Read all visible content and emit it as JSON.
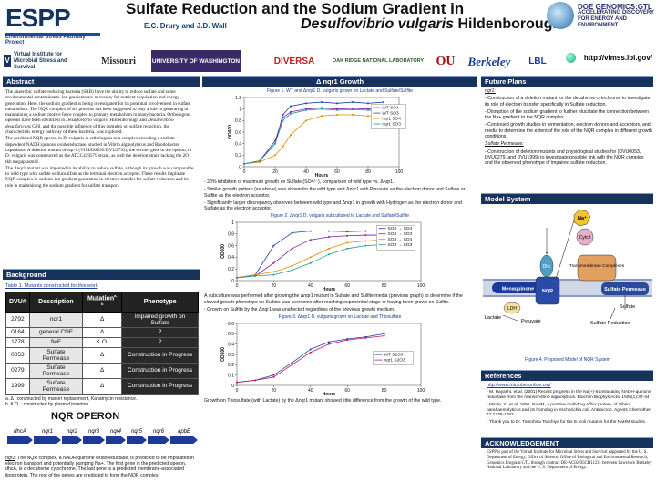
{
  "header": {
    "logo_letters": "ESPP",
    "logo_sub": "Environmental Stress Pathway Project",
    "title_line1": "Sulfate Reduction and the Sodium Gradient in",
    "title_line2_italic": "Desulfovibrio vulgaris",
    "title_line2_rest": " Hildenborough",
    "authors": "E.C. Drury and J.D. Wall",
    "doe_title": "DOE GENOMICS:GTL",
    "doe_sub": "ACCELERATING DISCOVERY FOR ENERGY AND ENVIRONMENT"
  },
  "logos": {
    "vimss": "Virtual Institute for Microbial Stress and Survival",
    "missouri": "Missouri",
    "washington": "UNIVERSITY OF WASHINGTON",
    "diversa": "DIVERSA",
    "ornl": "OAK RIDGE NATIONAL LABORATORY",
    "ou": "OU",
    "berkeley": "Berkeley",
    "lbl": "LBL",
    "url": "http://vimss.lbl.gov/"
  },
  "abstract": {
    "heading": "Abstract",
    "p1": "The anaerobic sulfate-reducing bacteria (SRB) have the ability to reduce sulfate and some environmental contaminants. Ion gradients are necessary for nutrient acquisition and energy generation. Here, the sodium gradient is being investigated for its potential involvement in sulfate metabolism. The NQR complex of six proteins has been suggested to play a role in generating or maintaining a sodium motive force coupled to primary metabolism in many bacteria. Orthologous operons have been identified in ",
    "p1_italic": "Desulfovibrio vulgaris",
    "p1_b": " Hildenborough and ",
    "p1_italic2": "Desulfovibrio desulfuricans",
    "p1_c": " G20, and the possible influence of this complex on sulfate reduction, the characteristic energy pathway of these bacteria, was explored.",
    "p2": "The predicted NQR operon in D. vulgaris is orthologous to a complex encoding a sodium-dependent NADH:quinone oxidoreductase, studied in Vibrio alginolyticus and Rhodobacter capsulatus. A deletion mutant of nqr-1 (VIMSS2892/DVU2792), the second gene in the operon, in D. vulgaris was constructed as the ATCC429579 strain, as well the deletion strain lacking the 2O tkb megaplasmid.",
    "p3": "The Δnqr1 mutant was impaired in its ability to reduce sulfate, although its growth was comparable to wild type with sulfite or thiosulfate as the terminal electron acceptor. These results implicate NQR complex in sodium-ion gradient generation in electron transfer for sulfate reduction and its role in maintaining the sodium gradient for sulfate transport."
  },
  "background": {
    "heading": "Background",
    "table_caption": "Table 1. Mutants constructed for this work",
    "columns": [
      "DVU#",
      "Description",
      "Mutation",
      "Phenotype"
    ],
    "mutation_sup": "a, b",
    "rows": [
      {
        "dvu": "2792",
        "desc": "nqr1",
        "mut": "Δ",
        "pheno": "impaired growth on Sulfate"
      },
      {
        "dvu": "0164",
        "desc": "general CDF",
        "mut": "Δ",
        "pheno": "?"
      },
      {
        "dvu": "1778",
        "desc": "fieF",
        "mut": "K.O.",
        "pheno": "?"
      },
      {
        "dvu": "0053",
        "desc": "Sulfate Permease",
        "mut": "Δ",
        "pheno": "Construction in Progress"
      },
      {
        "dvu": "0279",
        "desc": "Sulfate Permease",
        "mut": "Δ",
        "pheno": "Construction in Progress"
      },
      {
        "dvu": "1999",
        "desc": "Sulfate Permease",
        "mut": "Δ",
        "pheno": "Construction in Progress"
      }
    ],
    "footnote_a": "a. Δ : constructed by marker replacement, Kanamycin resistance.",
    "footnote_b": "b. K.O. : constructed by plasmid insertion.",
    "operon_title": "NQR OPERON",
    "operon_genes": [
      "dhcA",
      "nqr1",
      "nqr2",
      "nqr3",
      "nqr4",
      "nqr5",
      "nqr6",
      "apbE"
    ],
    "operon_text_label": "nqr1",
    "operon_text": ": The NQR complex, a NADH quinone oxidoreductase, is predicted to be implicated in electron transport and potentially pumping Na+. The first gene in the predicted operon, dhcA, is a decaheme cytochrome. The last gene is a predicted membrane-associated lipoprotein. The rest of the genes are predicted to form the NQR complex."
  },
  "growth": {
    "heading": "Δ nqr1 Growth",
    "fig1_caption": "Figure 1. WT and Δnqr1 D. vulgaris grown on Lactate and Sulfate/Sulfite",
    "bullets1": [
      "20% inhibition of maximum growth on Sulfate (SO4²⁻), comparison of wild type vs. Δnqr1.",
      "Similar growth pattern (as above) was shown for the wild type and Δnqr1 with Pyruvate as the electron donor and Sulfate or Sulfite as the electron acceptor.",
      "Significantly larger discrepancy observed between wild type and Δnqr1 in growth with Hydrogen as the electron donor and Sulfate as the electron acceptor."
    ],
    "fig2_caption": "Figure 2. Δnqr1 D. vulgaris subcultured to Lactate and Sulfate/Sulfite",
    "para2": "A subculture was performed after growing the Δnqr1 mutant in Sulfate and Sulfite media (previous graph) to determine if the slowed growth phenotype on Sulfate was overcome after reaching exponential stage or having been grown on Sulfite.",
    "bullet2": "Growth on Sulfite by the Δnqr1 was unaffected regardless of the previous growth medium.",
    "fig3_caption": "Figure 3. Δnqr1 D. vulgaris grown on Lactate and Thiosulfate",
    "para3": "Growth on Thiosulfate (with Lactate) by the Δnqr1 mutant showed little difference from the growth of the wild type."
  },
  "chart_data": [
    {
      "type": "line",
      "title": "",
      "xlabel": "Hours",
      "ylabel": "OD600",
      "xlim": [
        0,
        100
      ],
      "ylim": [
        0,
        1.2
      ],
      "xticks": [
        0,
        20,
        40,
        60,
        80,
        100
      ],
      "yticks": [
        0,
        0.2,
        0.4,
        0.6,
        0.8,
        1.0,
        1.2
      ],
      "yticklabels": [
        "0",
        "0.2",
        "0.4",
        "0.6",
        "0.8",
        "1",
        "1.2"
      ],
      "series": [
        {
          "name": "WT SO4",
          "color": "#1f3fa8",
          "x": [
            0,
            10,
            20,
            25,
            30,
            40,
            50,
            60,
            70,
            80,
            90
          ],
          "y": [
            0.05,
            0.1,
            0.4,
            0.9,
            1.05,
            1.1,
            1.12,
            1.1,
            1.12,
            1.1,
            1.12
          ]
        },
        {
          "name": "WT SO3",
          "color": "#7b1fa2",
          "x": [
            0,
            10,
            20,
            25,
            30,
            40,
            50,
            60,
            70,
            80,
            90
          ],
          "y": [
            0.05,
            0.1,
            0.45,
            0.85,
            0.95,
            1.0,
            1.02,
            1.0,
            1.01,
            1.0,
            1.0
          ]
        },
        {
          "name": "nqr1 SO4",
          "color": "#e58a00",
          "x": [
            0,
            10,
            20,
            25,
            30,
            40,
            50,
            60,
            70,
            80,
            90
          ],
          "y": [
            0.05,
            0.08,
            0.2,
            0.35,
            0.55,
            0.8,
            0.88,
            0.9,
            0.9,
            0.88,
            0.9
          ]
        },
        {
          "name": "nqr1 SO3",
          "color": "#1a9a9a",
          "x": [
            0,
            10,
            20,
            25,
            30,
            40,
            50,
            60,
            70,
            80,
            90
          ],
          "y": [
            0.05,
            0.1,
            0.4,
            0.8,
            0.92,
            0.98,
            1.0,
            0.98,
            0.99,
            0.98,
            0.98
          ]
        }
      ]
    },
    {
      "type": "line",
      "title": "",
      "xlabel": "Hours",
      "ylabel": "OD600",
      "xlim": [
        0,
        100
      ],
      "ylim": [
        0,
        1
      ],
      "xticks": [
        0,
        20,
        40,
        60,
        80,
        100
      ],
      "yticks": [
        0,
        0.2,
        0.4,
        0.6,
        0.8,
        1.0
      ],
      "yticklabels": [
        "0",
        "0.2",
        "0.4",
        "0.6",
        "0.8",
        "1"
      ],
      "series": [
        {
          "name": "SO4 → SO4",
          "color": "#1f3fa8",
          "x": [
            0,
            10,
            20,
            30,
            40,
            50,
            60,
            70,
            80,
            90
          ],
          "y": [
            0.05,
            0.1,
            0.6,
            0.82,
            0.85,
            0.85,
            0.84,
            0.85,
            0.85,
            0.84
          ]
        },
        {
          "name": "SO4 → SO3",
          "color": "#7b1fa2",
          "x": [
            0,
            10,
            20,
            30,
            40,
            50,
            60,
            70,
            80,
            90
          ],
          "y": [
            0.05,
            0.08,
            0.3,
            0.55,
            0.7,
            0.75,
            0.77,
            0.78,
            0.78,
            0.78
          ]
        },
        {
          "name": "SO3 → SO4",
          "color": "#e58a00",
          "x": [
            0,
            10,
            20,
            30,
            40,
            50,
            60,
            70,
            80,
            90
          ],
          "y": [
            0.05,
            0.1,
            0.15,
            0.25,
            0.4,
            0.55,
            0.65,
            0.68,
            0.7,
            0.7
          ]
        },
        {
          "name": "SO3 → SO3",
          "color": "#1a9a9a",
          "x": [
            0,
            10,
            20,
            30,
            40,
            50,
            60,
            70,
            80,
            90
          ],
          "y": [
            0.05,
            0.08,
            0.1,
            0.18,
            0.3,
            0.45,
            0.55,
            0.6,
            0.62,
            0.62
          ]
        }
      ]
    },
    {
      "type": "line",
      "title": "",
      "xlabel": "Hours",
      "ylabel": "OD600",
      "xlim": [
        0,
        100
      ],
      "ylim": [
        0,
        0.6
      ],
      "xticks": [
        0,
        20,
        40,
        60,
        80,
        100
      ],
      "yticks": [
        0,
        0.1,
        0.2,
        0.3,
        0.4,
        0.5,
        0.6
      ],
      "yticklabels": [
        "0",
        "0.1",
        "0.2",
        "0.3",
        "0.4",
        "0.5",
        "0.6"
      ],
      "series": [
        {
          "name": "WT S2O3",
          "color": "#1f3fa8",
          "x": [
            0,
            10,
            20,
            30,
            40,
            50,
            60,
            70,
            80
          ],
          "y": [
            0.03,
            0.05,
            0.1,
            0.22,
            0.35,
            0.42,
            0.45,
            0.47,
            0.5
          ]
        },
        {
          "name": "nqr1 S2O3",
          "color": "#c2185b",
          "x": [
            0,
            10,
            20,
            30,
            40,
            50,
            60,
            70,
            80
          ],
          "y": [
            0.03,
            0.05,
            0.08,
            0.2,
            0.32,
            0.4,
            0.44,
            0.46,
            0.48
          ]
        }
      ]
    }
  ],
  "future": {
    "heading": "Future Plans",
    "label1": "nqr1:",
    "items1": [
      "Construction of a deletion mutant for the decaheme cytochrome to investigate its role of electron transfer specifically in Sulfate reduction.",
      "Disruption of the sodium gradient to further elucidate the connection between the Na+ gradient to the NQR complex.",
      "Continued growth studies in fermentation, electron donors and acceptors, and media to determine the extent of the role of the NQR complex in different growth conditions."
    ],
    "label2": "Sulfate Permease:",
    "items2": [
      "Construction of deletion mutants and physiological studies for (DVU0053, DVU0279, and DVU1999) to investigate possible link with the NQR complex and the observed phenotype of impaired sulfate reduction."
    ]
  },
  "model": {
    "heading": "Model System",
    "labels": {
      "na": "Na⁺",
      "cytc3": "Cytc3",
      "dhc": "Dhc",
      "transmembrane": "Transmembrane Complexes",
      "menaquinone": "Menaquinone pool",
      "nqr": "NQR",
      "sulfate_permease": "Sulfate Permease",
      "ldh": "LDH",
      "lactate": "Lactate",
      "pyruvate": "Pyruvate",
      "sulfate": "Sulfate",
      "sulfate_reduction": "Sulfate Reduction"
    },
    "caption": "Figure 4. Proposed Model of NQR System"
  },
  "references": {
    "heading": "References",
    "link": "http://www.microbesonline.org/",
    "items": [
      "M. Hayashi, et al. (2001) Recent progress in the Na(+)-translocating NADH-quinone reductase from the marine Vibrio alginolyticus. Biochim Biophys Acta. 1505(1):37-44",
      "Mintle, Y., et al. 1996. NaHM, a putative multidrug efflux protein, of Vibrio parahaemolyticus and its homolog in Escherichia coli. Antimicrob. Agents Chemother. 42:1778-1782.",
      "Thank you to Dr. Tomohisa Tsuchiya for the E. coli mutants for the NaHM studies."
    ]
  },
  "ack": {
    "heading": "ACKNOWLEDGEMENT",
    "text": "ESPP is part of the Virtual Institute for Microbial Stress and Survival supported by the U. S. Department of Energy, Office of Science, Office of Biological and Environmental Research, Genomics Program:GTL through contract DE-AC02-05CH11231 between Lawrence Berkeley National Laboratory and the U. S. Department of Energy."
  }
}
